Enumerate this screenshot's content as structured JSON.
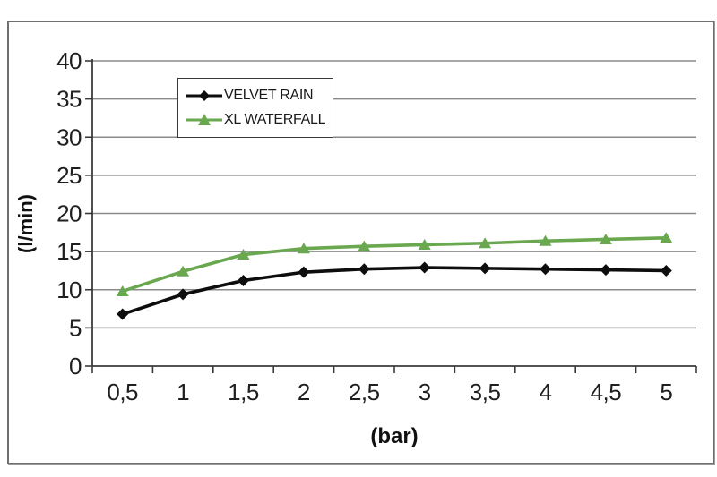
{
  "chart_data": {
    "type": "line",
    "title": "",
    "xlabel": "(bar)",
    "ylabel": "(l/min)",
    "categories": [
      "0,5",
      "1",
      "1,5",
      "2",
      "2,5",
      "3",
      "3,5",
      "4",
      "4,5",
      "5"
    ],
    "x_values": [
      0.5,
      1,
      1.5,
      2,
      2.5,
      3,
      3.5,
      4,
      4.5,
      5
    ],
    "series": [
      {
        "name": "VELVET RAIN",
        "color": "#0d0d0d",
        "marker": "diamond",
        "values": [
          6.8,
          9.4,
          11.2,
          12.3,
          12.7,
          12.9,
          12.8,
          12.7,
          12.6,
          12.5
        ]
      },
      {
        "name": "XL WATERFALL",
        "color": "#6aa84f",
        "marker": "triangle",
        "values": [
          9.8,
          12.4,
          14.6,
          15.4,
          15.7,
          15.9,
          16.1,
          16.4,
          16.6,
          16.8
        ]
      }
    ],
    "y_ticks": [
      "0",
      "5",
      "10",
      "15",
      "20",
      "25",
      "30",
      "35",
      "40"
    ],
    "ylim": [
      0,
      40
    ],
    "y_tick_step": 5,
    "grid": true,
    "grid_color": "#8a8a8a",
    "axis_color": "#3c3c3c",
    "legend_position": "top-left-inside",
    "legend_border_color": "#3a3a3a"
  }
}
